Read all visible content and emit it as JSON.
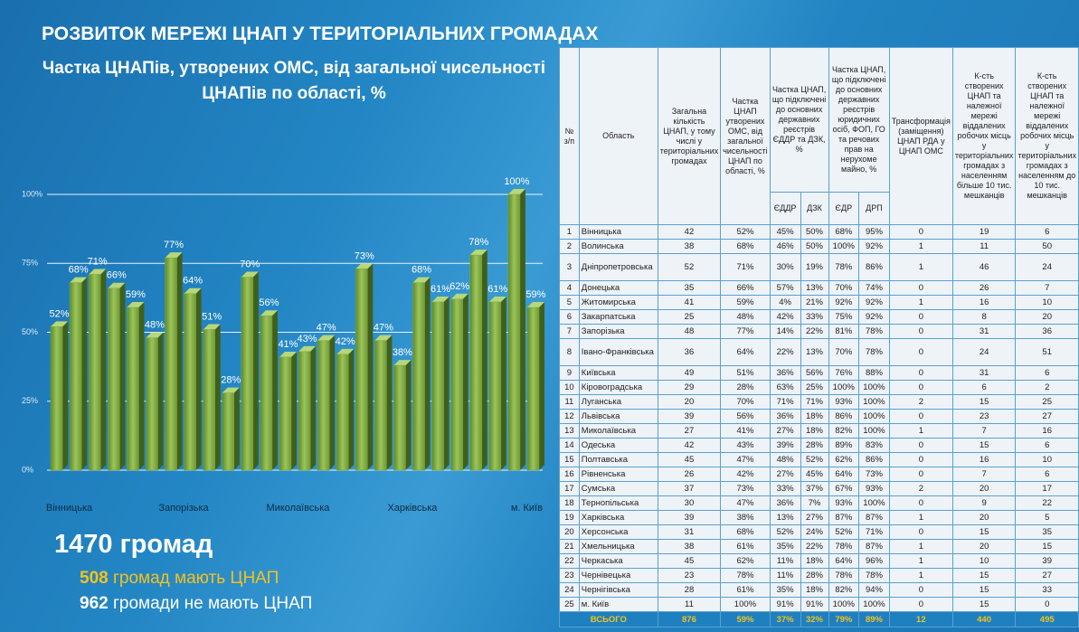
{
  "title": "РОЗВИТОК МЕРЕЖІ ЦНАП У ТЕРИТОРІАЛЬНИХ ГРОМАДАХ",
  "subtitle": "Частка ЦНАПів, утворених ОМС, від загальної чисельності ЦНАПів по області, %",
  "chart_data": {
    "type": "bar",
    "categories": [
      "Вінницька",
      null,
      null,
      null,
      null,
      null,
      "Запорізька",
      null,
      null,
      null,
      null,
      null,
      "Миколаївська",
      null,
      null,
      null,
      null,
      null,
      "Харківська",
      null,
      null,
      null,
      null,
      null,
      "м. Київ",
      null
    ],
    "values": [
      52,
      68,
      71,
      66,
      59,
      48,
      77,
      64,
      51,
      28,
      70,
      56,
      41,
      43,
      47,
      42,
      73,
      47,
      38,
      68,
      61,
      62,
      78,
      61,
      100,
      59
    ],
    "value_labels": [
      "52%",
      "68%",
      "71%",
      "66%",
      "59%",
      "48%",
      "77%",
      "64%",
      "51%",
      "28%",
      "70%",
      "56%",
      "41%",
      "43%",
      "47%",
      "42%",
      "73%",
      "47%",
      "38%",
      "68%",
      "61%",
      "62%",
      "78%",
      "61%",
      "100%",
      "59%"
    ],
    "color": "#7fa83f",
    "ylim": [
      0,
      100
    ],
    "yticks": [
      {
        "value": 0,
        "label": "0%"
      },
      {
        "value": 25,
        "label": "25%"
      },
      {
        "value": 50,
        "label": "50%"
      },
      {
        "value": 75,
        "label": "75%"
      },
      {
        "value": 100,
        "label": "100%"
      }
    ],
    "grid": true
  },
  "summary": {
    "total": "1470 громад",
    "with_number": "508",
    "with_text": "громад мають ЦНАП",
    "without_number": "962",
    "without_text": "громади не мають ЦНАП"
  },
  "table": {
    "header": [
      "№ з/п",
      "Область",
      "Загальна кількість ЦНАП, у тому числі у територіальних громадах",
      "Частка ЦНАП утворених ОМС, від загальної чисельності ЦНАП по області, %",
      "Частка ЦНАП, що підключені до основних державних реєстрів ЄДДР та ДЗК, %",
      "Частка ЦНАП, що підключені до основних державних реєстрів юридичних осіб, ФОП, ГО та речових прав на нерухоме майно, %",
      "Трансформація (заміщення) ЦНАП РДА у ЦНАП ОМС",
      "К-сть створених ЦНАП та належної мережі віддалених робочих місць у територіальних громадах з населенням більше 10 тис. мешканців",
      "К-сть створених ЦНАП та належної мережі віддалених робочих місць у територіальних громадах з населенням до 10 тис. мешканців"
    ],
    "subheader": [
      "ЄДДР",
      "ДЗК",
      "ЄДР",
      "ДРП"
    ],
    "rows": [
      [
        "1",
        "Вінницька",
        "42",
        "52%",
        "45%",
        "50%",
        "68%",
        "95%",
        "0",
        "19",
        "6"
      ],
      [
        "2",
        "Волинська",
        "38",
        "68%",
        "46%",
        "50%",
        "100%",
        "92%",
        "1",
        "11",
        "50"
      ],
      [
        "3",
        "Дніпропетровська",
        "52",
        "71%",
        "30%",
        "19%",
        "78%",
        "86%",
        "1",
        "46",
        "24"
      ],
      [
        "4",
        "Донецька",
        "35",
        "66%",
        "57%",
        "13%",
        "70%",
        "74%",
        "0",
        "26",
        "7"
      ],
      [
        "5",
        "Житомирська",
        "41",
        "59%",
        "4%",
        "21%",
        "92%",
        "92%",
        "1",
        "16",
        "10"
      ],
      [
        "6",
        "Закарпатська",
        "25",
        "48%",
        "42%",
        "33%",
        "75%",
        "92%",
        "0",
        "8",
        "20"
      ],
      [
        "7",
        "Запорізька",
        "48",
        "77%",
        "14%",
        "22%",
        "81%",
        "78%",
        "0",
        "31",
        "36"
      ],
      [
        "8",
        "Івано-Франківська",
        "36",
        "64%",
        "22%",
        "13%",
        "70%",
        "78%",
        "0",
        "24",
        "51"
      ],
      [
        "9",
        "Київська",
        "49",
        "51%",
        "36%",
        "56%",
        "76%",
        "88%",
        "0",
        "31",
        "6"
      ],
      [
        "10",
        "Кіровоградська",
        "29",
        "28%",
        "63%",
        "25%",
        "100%",
        "100%",
        "0",
        "6",
        "2"
      ],
      [
        "11",
        "Луганська",
        "20",
        "70%",
        "71%",
        "71%",
        "93%",
        "100%",
        "2",
        "15",
        "25"
      ],
      [
        "12",
        "Львівська",
        "39",
        "56%",
        "36%",
        "18%",
        "86%",
        "100%",
        "0",
        "23",
        "27"
      ],
      [
        "13",
        "Миколаївська",
        "27",
        "41%",
        "27%",
        "18%",
        "82%",
        "100%",
        "1",
        "7",
        "16"
      ],
      [
        "14",
        "Одеська",
        "42",
        "43%",
        "39%",
        "28%",
        "89%",
        "83%",
        "0",
        "15",
        "6"
      ],
      [
        "15",
        "Полтавська",
        "45",
        "47%",
        "48%",
        "52%",
        "62%",
        "86%",
        "0",
        "16",
        "10"
      ],
      [
        "16",
        "Рівненська",
        "26",
        "42%",
        "27%",
        "45%",
        "64%",
        "73%",
        "0",
        "7",
        "6"
      ],
      [
        "17",
        "Сумська",
        "37",
        "73%",
        "33%",
        "37%",
        "67%",
        "93%",
        "2",
        "20",
        "17"
      ],
      [
        "18",
        "Тернопільська",
        "30",
        "47%",
        "36%",
        "7%",
        "93%",
        "100%",
        "0",
        "9",
        "22"
      ],
      [
        "19",
        "Харківська",
        "39",
        "38%",
        "13%",
        "27%",
        "87%",
        "87%",
        "1",
        "20",
        "5"
      ],
      [
        "20",
        "Херсонська",
        "31",
        "68%",
        "52%",
        "24%",
        "52%",
        "71%",
        "0",
        "15",
        "35"
      ],
      [
        "21",
        "Хмельницька",
        "38",
        "61%",
        "35%",
        "22%",
        "78%",
        "87%",
        "1",
        "20",
        "15"
      ],
      [
        "22",
        "Черкаська",
        "45",
        "62%",
        "11%",
        "18%",
        "64%",
        "96%",
        "1",
        "10",
        "39"
      ],
      [
        "23",
        "Чернівецька",
        "23",
        "78%",
        "11%",
        "28%",
        "78%",
        "78%",
        "1",
        "15",
        "27"
      ],
      [
        "24",
        "Чернігівська",
        "28",
        "61%",
        "35%",
        "18%",
        "82%",
        "94%",
        "0",
        "15",
        "33"
      ],
      [
        "25",
        "м. Київ",
        "11",
        "100%",
        "91%",
        "91%",
        "100%",
        "100%",
        "0",
        "15",
        "0"
      ]
    ],
    "total": [
      "ВСЬОГО",
      "876",
      "59%",
      "37%",
      "32%",
      "79%",
      "89%",
      "12",
      "440",
      "495"
    ]
  }
}
